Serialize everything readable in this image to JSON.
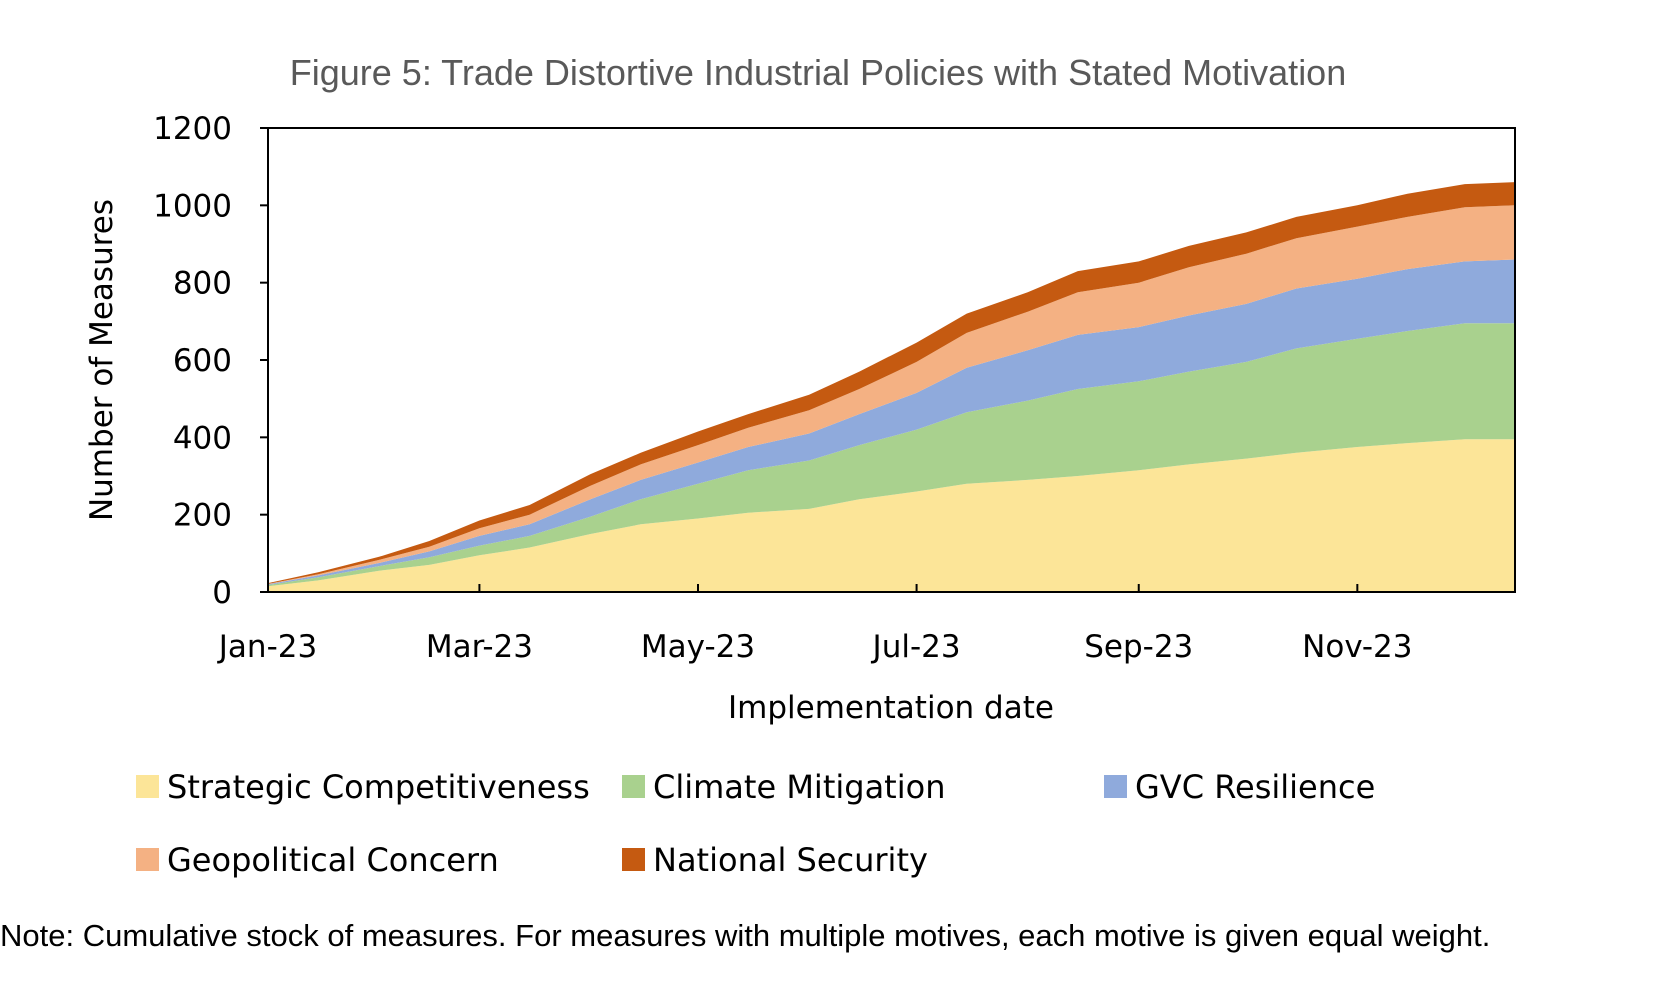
{
  "chart_data": {
    "type": "area",
    "stacked": true,
    "title": "Figure 5: Trade Distortive Industrial Policies with Stated Motivation",
    "xlabel": "Implementation date",
    "ylabel": "Number of Measures",
    "ylim": [
      0,
      1200
    ],
    "yticks": [
      0,
      200,
      400,
      600,
      800,
      1000,
      1200
    ],
    "xlim": [
      "2023-01-01",
      "2023-12-15"
    ],
    "xticks": [
      {
        "date": "2023-01-01",
        "label": "Jan-23"
      },
      {
        "date": "2023-03-01",
        "label": "Mar-23"
      },
      {
        "date": "2023-05-01",
        "label": "May-23"
      },
      {
        "date": "2023-07-01",
        "label": "Jul-23"
      },
      {
        "date": "2023-09-01",
        "label": "Sep-23"
      },
      {
        "date": "2023-11-01",
        "label": "Nov-23"
      }
    ],
    "legend_position": "bottom",
    "x": [
      "2023-01-01",
      "2023-01-15",
      "2023-02-01",
      "2023-02-15",
      "2023-03-01",
      "2023-03-15",
      "2023-04-01",
      "2023-04-15",
      "2023-05-01",
      "2023-05-15",
      "2023-06-01",
      "2023-06-15",
      "2023-07-01",
      "2023-07-15",
      "2023-08-01",
      "2023-08-15",
      "2023-09-01",
      "2023-09-15",
      "2023-10-01",
      "2023-10-15",
      "2023-11-01",
      "2023-11-15",
      "2023-12-01",
      "2023-12-15"
    ],
    "series": [
      {
        "name": "Strategic Competitiveness",
        "color": "#fce598",
        "values": [
          15,
          30,
          55,
          70,
          95,
          115,
          150,
          175,
          190,
          205,
          215,
          240,
          260,
          280,
          290,
          300,
          315,
          330,
          345,
          360,
          375,
          385,
          395,
          395
        ]
      },
      {
        "name": "Climate Mitigation",
        "color": "#a9d18e",
        "values": [
          3,
          8,
          12,
          20,
          25,
          30,
          45,
          65,
          90,
          110,
          125,
          140,
          160,
          185,
          205,
          225,
          230,
          240,
          250,
          270,
          280,
          290,
          300,
          300
        ]
      },
      {
        "name": "GVC Resilience",
        "color": "#8faadc",
        "values": [
          2,
          5,
          8,
          15,
          25,
          30,
          45,
          50,
          55,
          60,
          70,
          80,
          95,
          115,
          130,
          140,
          140,
          145,
          150,
          155,
          155,
          160,
          160,
          165
        ]
      },
      {
        "name": "Geopolitical Concern",
        "color": "#f4b183",
        "values": [
          1,
          3,
          8,
          12,
          20,
          25,
          35,
          40,
          45,
          50,
          60,
          65,
          80,
          90,
          100,
          110,
          115,
          125,
          130,
          130,
          135,
          135,
          140,
          140
        ]
      },
      {
        "name": "National Security",
        "color": "#c55a11",
        "values": [
          2,
          5,
          8,
          15,
          20,
          25,
          30,
          30,
          35,
          35,
          40,
          45,
          50,
          50,
          50,
          55,
          55,
          55,
          55,
          55,
          55,
          60,
          60,
          60
        ]
      }
    ]
  },
  "note": "Note: Cumulative stock of measures. For measures with multiple motives, each motive is given equal weight."
}
